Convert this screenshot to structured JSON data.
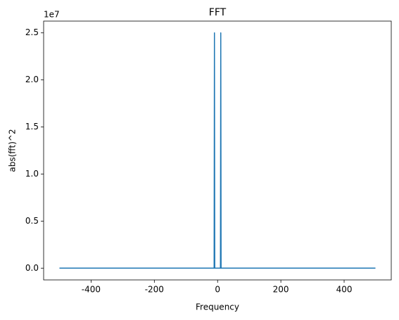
{
  "chart_data": {
    "type": "line",
    "title": "FFT",
    "x_label": "Frequency",
    "y_label": "abs(fft)^2",
    "y_offset_label": "1e7",
    "x": [
      -500,
      -11,
      -10,
      -9,
      9,
      10,
      11,
      499
    ],
    "series": [
      {
        "color": "#1f77b4",
        "values": [
          0,
          0,
          2.5,
          0,
          0,
          2.5,
          0,
          0
        ]
      }
    ],
    "xlim": [
      -550,
      549
    ],
    "xticks": [
      -400,
      -200,
      0,
      200,
      400
    ],
    "ylim": [
      -0.125,
      2.625
    ],
    "yticks": [
      {
        "value": 0,
        "label": "0.0"
      },
      0.5,
      {
        "value": 1,
        "label": "1.0"
      },
      1.5,
      {
        "value": 2,
        "label": "2.0"
      },
      2.5
    ],
    "grid": false
  }
}
